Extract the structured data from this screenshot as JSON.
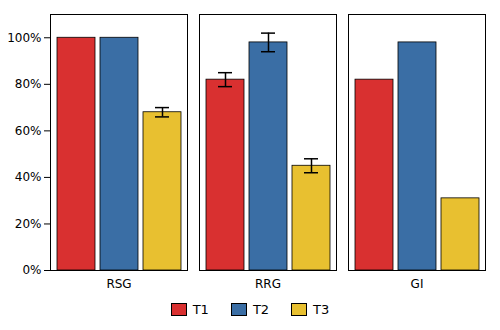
{
  "chart_data": {
    "type": "bar",
    "categories": [
      "RSG",
      "RRG",
      "GI"
    ],
    "series": [
      {
        "name": "T1",
        "color": "#D93030",
        "values": [
          1.0,
          0.82,
          0.82
        ],
        "errors": [
          0.0,
          0.03,
          0.0
        ]
      },
      {
        "name": "T2",
        "color": "#3A6EA5",
        "values": [
          1.0,
          0.98,
          0.98
        ],
        "errors": [
          0.0,
          0.04,
          0.0
        ]
      },
      {
        "name": "T3",
        "color": "#E8C030",
        "values": [
          0.68,
          0.45,
          0.31
        ],
        "errors": [
          0.02,
          0.03,
          0.0
        ]
      }
    ],
    "ylim": [
      0,
      1.1
    ],
    "yticks": [
      {
        "value": 0.0,
        "label": "0%"
      },
      {
        "value": 0.2,
        "label": "20%"
      },
      {
        "value": 0.4,
        "label": "40%"
      },
      {
        "value": 0.6,
        "label": "60%"
      },
      {
        "value": 0.8,
        "label": "80%"
      },
      {
        "value": 1.0,
        "label": "100%"
      }
    ],
    "grid": false,
    "legend": "bottom"
  }
}
